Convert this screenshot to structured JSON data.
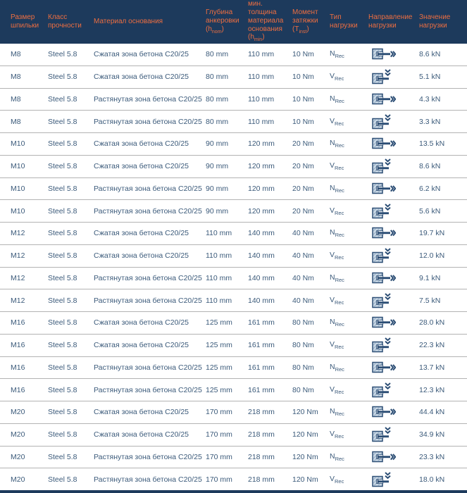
{
  "colors": {
    "header_bg": "#1d3a5c",
    "header_text": "#ed6e41",
    "body_text": "#3b5a7a",
    "row_border": "#b3b3b3",
    "icon_navy": "#2b4d74",
    "icon_concrete_fill": "#c9d7e4",
    "icon_hatch": "#8fa9c2"
  },
  "header": {
    "columns": [
      {
        "id": "size",
        "lines": [
          "Размер",
          "шпильки"
        ]
      },
      {
        "id": "strength-class",
        "lines": [
          "Класс",
          "прочности"
        ]
      },
      {
        "id": "base-material",
        "lines": [
          "Материал основания"
        ]
      },
      {
        "id": "anchoring-depth",
        "lines": [
          "Глубина",
          "анкеровки"
        ],
        "formula_base": "(h",
        "formula_sub": "nom",
        "formula_close": ")"
      },
      {
        "id": "min-thickness",
        "lines": [
          "мин.",
          "толщина",
          "материала",
          "основания"
        ],
        "formula_base": "(h",
        "formula_sub": "min",
        "formula_close": ")"
      },
      {
        "id": "torque",
        "lines": [
          "Момент",
          "затяжки"
        ],
        "formula_base": "(T",
        "formula_sub": "inst",
        "formula_close": ")"
      },
      {
        "id": "load-type",
        "lines": [
          "Тип",
          "нагрузки"
        ]
      },
      {
        "id": "load-direction",
        "lines": [
          "Направление",
          "нагрузки"
        ]
      },
      {
        "id": "load-value",
        "lines": [
          "Значение",
          "нагрузки"
        ]
      }
    ]
  },
  "icons": {
    "axial": "anchor-axial-load-icon",
    "shear": "anchor-shear-load-icon"
  },
  "rows": [
    {
      "size": "M8",
      "strength_class": "Steel 5.8",
      "material": "Сжатая зона бетона C20/25",
      "anchoring_depth": "80 mm",
      "min_thickness": "110 mm",
      "torque": "10 Nm",
      "load_type_base": "N",
      "load_type_sub": "Rec",
      "load_direction": "axial",
      "load_value": "8.6 kN"
    },
    {
      "size": "M8",
      "strength_class": "Steel 5.8",
      "material": "Сжатая зона бетона C20/25",
      "anchoring_depth": "80 mm",
      "min_thickness": "110 mm",
      "torque": "10 Nm",
      "load_type_base": "V",
      "load_type_sub": "Rec",
      "load_direction": "shear",
      "load_value": "5.1 kN"
    },
    {
      "size": "M8",
      "strength_class": "Steel 5.8",
      "material": "Растянутая зона бетона C20/25",
      "anchoring_depth": "80 mm",
      "min_thickness": "110 mm",
      "torque": "10 Nm",
      "load_type_base": "N",
      "load_type_sub": "Rec",
      "load_direction": "axial",
      "load_value": "4.3 kN"
    },
    {
      "size": "M8",
      "strength_class": "Steel 5.8",
      "material": "Растянутая зона бетона C20/25",
      "anchoring_depth": "80 mm",
      "min_thickness": "110 mm",
      "torque": "10 Nm",
      "load_type_base": "V",
      "load_type_sub": "Rec",
      "load_direction": "shear",
      "load_value": "3.3 kN"
    },
    {
      "size": "M10",
      "strength_class": "Steel 5.8",
      "material": "Сжатая зона бетона C20/25",
      "anchoring_depth": "90 mm",
      "min_thickness": "120 mm",
      "torque": "20 Nm",
      "load_type_base": "N",
      "load_type_sub": "Rec",
      "load_direction": "axial",
      "load_value": "13.5 kN"
    },
    {
      "size": "M10",
      "strength_class": "Steel 5.8",
      "material": "Сжатая зона бетона C20/25",
      "anchoring_depth": "90 mm",
      "min_thickness": "120 mm",
      "torque": "20 Nm",
      "load_type_base": "V",
      "load_type_sub": "Rec",
      "load_direction": "shear",
      "load_value": "8.6 kN"
    },
    {
      "size": "M10",
      "strength_class": "Steel 5.8",
      "material": "Растянутая зона бетона C20/25",
      "anchoring_depth": "90 mm",
      "min_thickness": "120 mm",
      "torque": "20 Nm",
      "load_type_base": "N",
      "load_type_sub": "Rec",
      "load_direction": "axial",
      "load_value": "6.2 kN"
    },
    {
      "size": "M10",
      "strength_class": "Steel 5.8",
      "material": "Растянутая зона бетона C20/25",
      "anchoring_depth": "90 mm",
      "min_thickness": "120 mm",
      "torque": "20 Nm",
      "load_type_base": "V",
      "load_type_sub": "Rec",
      "load_direction": "shear",
      "load_value": "5.6 kN"
    },
    {
      "size": "M12",
      "strength_class": "Steel 5.8",
      "material": "Сжатая зона бетона C20/25",
      "anchoring_depth": "110 mm",
      "min_thickness": "140 mm",
      "torque": "40 Nm",
      "load_type_base": "N",
      "load_type_sub": "Rec",
      "load_direction": "axial",
      "load_value": "19.7 kN"
    },
    {
      "size": "M12",
      "strength_class": "Steel 5.8",
      "material": "Сжатая зона бетона C20/25",
      "anchoring_depth": "110 mm",
      "min_thickness": "140 mm",
      "torque": "40 Nm",
      "load_type_base": "V",
      "load_type_sub": "Rec",
      "load_direction": "shear",
      "load_value": "12.0 kN"
    },
    {
      "size": "M12",
      "strength_class": "Steel 5.8",
      "material": "Растянутая зона бетона C20/25",
      "anchoring_depth": "110 mm",
      "min_thickness": "140 mm",
      "torque": "40 Nm",
      "load_type_base": "N",
      "load_type_sub": "Rec",
      "load_direction": "axial",
      "load_value": "9.1 kN"
    },
    {
      "size": "M12",
      "strength_class": "Steel 5.8",
      "material": "Растянутая зона бетона C20/25",
      "anchoring_depth": "110 mm",
      "min_thickness": "140 mm",
      "torque": "40 Nm",
      "load_type_base": "V",
      "load_type_sub": "Rec",
      "load_direction": "shear",
      "load_value": "7.5 kN"
    },
    {
      "size": "M16",
      "strength_class": "Steel 5.8",
      "material": "Сжатая зона бетона C20/25",
      "anchoring_depth": "125 mm",
      "min_thickness": "161 mm",
      "torque": "80 Nm",
      "load_type_base": "N",
      "load_type_sub": "Rec",
      "load_direction": "axial",
      "load_value": "28.0 kN"
    },
    {
      "size": "M16",
      "strength_class": "Steel 5.8",
      "material": "Сжатая зона бетона C20/25",
      "anchoring_depth": "125 mm",
      "min_thickness": "161 mm",
      "torque": "80 Nm",
      "load_type_base": "V",
      "load_type_sub": "Rec",
      "load_direction": "shear",
      "load_value": "22.3 kN"
    },
    {
      "size": "M16",
      "strength_class": "Steel 5.8",
      "material": "Растянутая зона бетона C20/25",
      "anchoring_depth": "125 mm",
      "min_thickness": "161 mm",
      "torque": "80 Nm",
      "load_type_base": "N",
      "load_type_sub": "Rec",
      "load_direction": "axial",
      "load_value": "13.7 kN"
    },
    {
      "size": "M16",
      "strength_class": "Steel 5.8",
      "material": "Растянутая зона бетона C20/25",
      "anchoring_depth": "125 mm",
      "min_thickness": "161 mm",
      "torque": "80 Nm",
      "load_type_base": "V",
      "load_type_sub": "Rec",
      "load_direction": "shear",
      "load_value": "12.3 kN"
    },
    {
      "size": "M20",
      "strength_class": "Steel 5.8",
      "material": "Сжатая зона бетона C20/25",
      "anchoring_depth": "170 mm",
      "min_thickness": "218 mm",
      "torque": "120 Nm",
      "load_type_base": "N",
      "load_type_sub": "Rec",
      "load_direction": "axial",
      "load_value": "44.4 kN"
    },
    {
      "size": "M20",
      "strength_class": "Steel 5.8",
      "material": "Сжатая зона бетона C20/25",
      "anchoring_depth": "170 mm",
      "min_thickness": "218 mm",
      "torque": "120 Nm",
      "load_type_base": "V",
      "load_type_sub": "Rec",
      "load_direction": "shear",
      "load_value": "34.9 kN"
    },
    {
      "size": "M20",
      "strength_class": "Steel 5.8",
      "material": "Растянутая зона бетона C20/25",
      "anchoring_depth": "170 mm",
      "min_thickness": "218 mm",
      "torque": "120 Nm",
      "load_type_base": "N",
      "load_type_sub": "Rec",
      "load_direction": "axial",
      "load_value": "23.3 kN"
    },
    {
      "size": "M20",
      "strength_class": "Steel 5.8",
      "material": "Растянутая зона бетона C20/25",
      "anchoring_depth": "170 mm",
      "min_thickness": "218 mm",
      "torque": "120 Nm",
      "load_type_base": "V",
      "load_type_sub": "Rec",
      "load_direction": "shear",
      "load_value": "18.0 kN"
    }
  ]
}
